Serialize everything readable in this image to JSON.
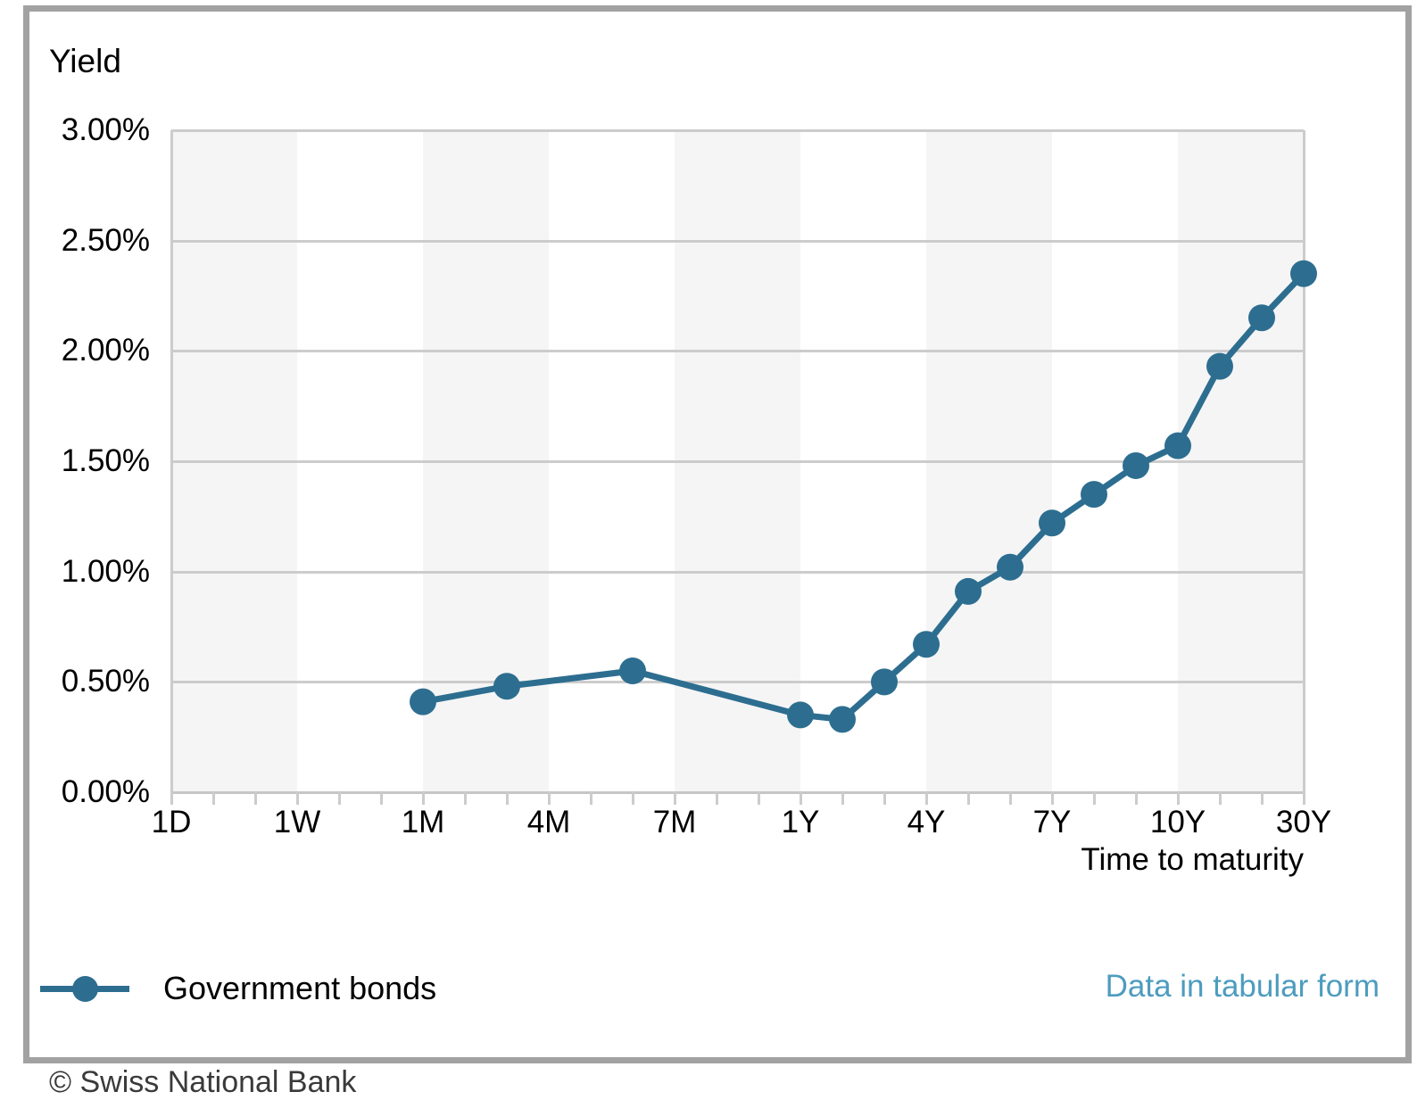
{
  "chart_data": {
    "type": "line",
    "title": "",
    "ylabel": "Yield",
    "xlabel": "Time to maturity",
    "ylim": [
      0,
      3
    ],
    "grid": true,
    "legend_position": "bottom-left",
    "y_ticks": [
      {
        "value": 3.0,
        "label": "3.00%"
      },
      {
        "value": 2.5,
        "label": "2.50%"
      },
      {
        "value": 2.0,
        "label": "2.00%"
      },
      {
        "value": 1.5,
        "label": "1.50%"
      },
      {
        "value": 1.0,
        "label": "1.00%"
      },
      {
        "value": 0.5,
        "label": "0.50%"
      },
      {
        "value": 0.0,
        "label": "0.00%"
      }
    ],
    "x_axis": {
      "total_tick_slots": 28,
      "ticks_per_label_group": 3,
      "major_ticks": [
        {
          "index": 0,
          "label": "1D"
        },
        {
          "index": 3,
          "label": "1W"
        },
        {
          "index": 6,
          "label": "1M"
        },
        {
          "index": 9,
          "label": "4M"
        },
        {
          "index": 12,
          "label": "7M"
        },
        {
          "index": 15,
          "label": "1Y"
        },
        {
          "index": 18,
          "label": "4Y"
        },
        {
          "index": 21,
          "label": "7Y"
        },
        {
          "index": 24,
          "label": "10Y"
        },
        {
          "index": 27,
          "label": "30Y"
        }
      ],
      "shaded_band_color": "#f5f5f5",
      "shaded_band_groups": [
        0,
        2,
        4,
        6,
        8
      ]
    },
    "series": [
      {
        "name": "Government bonds",
        "color": "#2d6e90",
        "points": [
          {
            "maturity": "1M",
            "index": 6,
            "yield_pct": 0.41
          },
          {
            "maturity": "3M",
            "index": 8,
            "yield_pct": 0.48
          },
          {
            "maturity": "6M",
            "index": 11,
            "yield_pct": 0.55
          },
          {
            "maturity": "1Y",
            "index": 15,
            "yield_pct": 0.35
          },
          {
            "maturity": "2Y",
            "index": 16,
            "yield_pct": 0.33
          },
          {
            "maturity": "3Y",
            "index": 17,
            "yield_pct": 0.5
          },
          {
            "maturity": "4Y",
            "index": 18,
            "yield_pct": 0.67
          },
          {
            "maturity": "5Y",
            "index": 19,
            "yield_pct": 0.91
          },
          {
            "maturity": "6Y",
            "index": 20,
            "yield_pct": 1.02
          },
          {
            "maturity": "7Y",
            "index": 21,
            "yield_pct": 1.22
          },
          {
            "maturity": "8Y",
            "index": 22,
            "yield_pct": 1.35
          },
          {
            "maturity": "9Y",
            "index": 23,
            "yield_pct": 1.48
          },
          {
            "maturity": "10Y",
            "index": 24,
            "yield_pct": 1.57
          },
          {
            "maturity": "15Y",
            "index": 25,
            "yield_pct": 1.93
          },
          {
            "maturity": "20Y",
            "index": 26,
            "yield_pct": 2.15
          },
          {
            "maturity": "30Y",
            "index": 27,
            "yield_pct": 2.35
          }
        ]
      }
    ]
  },
  "legend": {
    "label": "Government bonds"
  },
  "links": {
    "tabular_link_label": "Data in tabular form",
    "tabular_link_color": "#4d9cbe"
  },
  "footer": {
    "copyright": "© Swiss National Bank"
  },
  "colors": {
    "frame_border": "#a2a2a2",
    "gridline": "#cccccc",
    "series": "#2d6e90"
  }
}
